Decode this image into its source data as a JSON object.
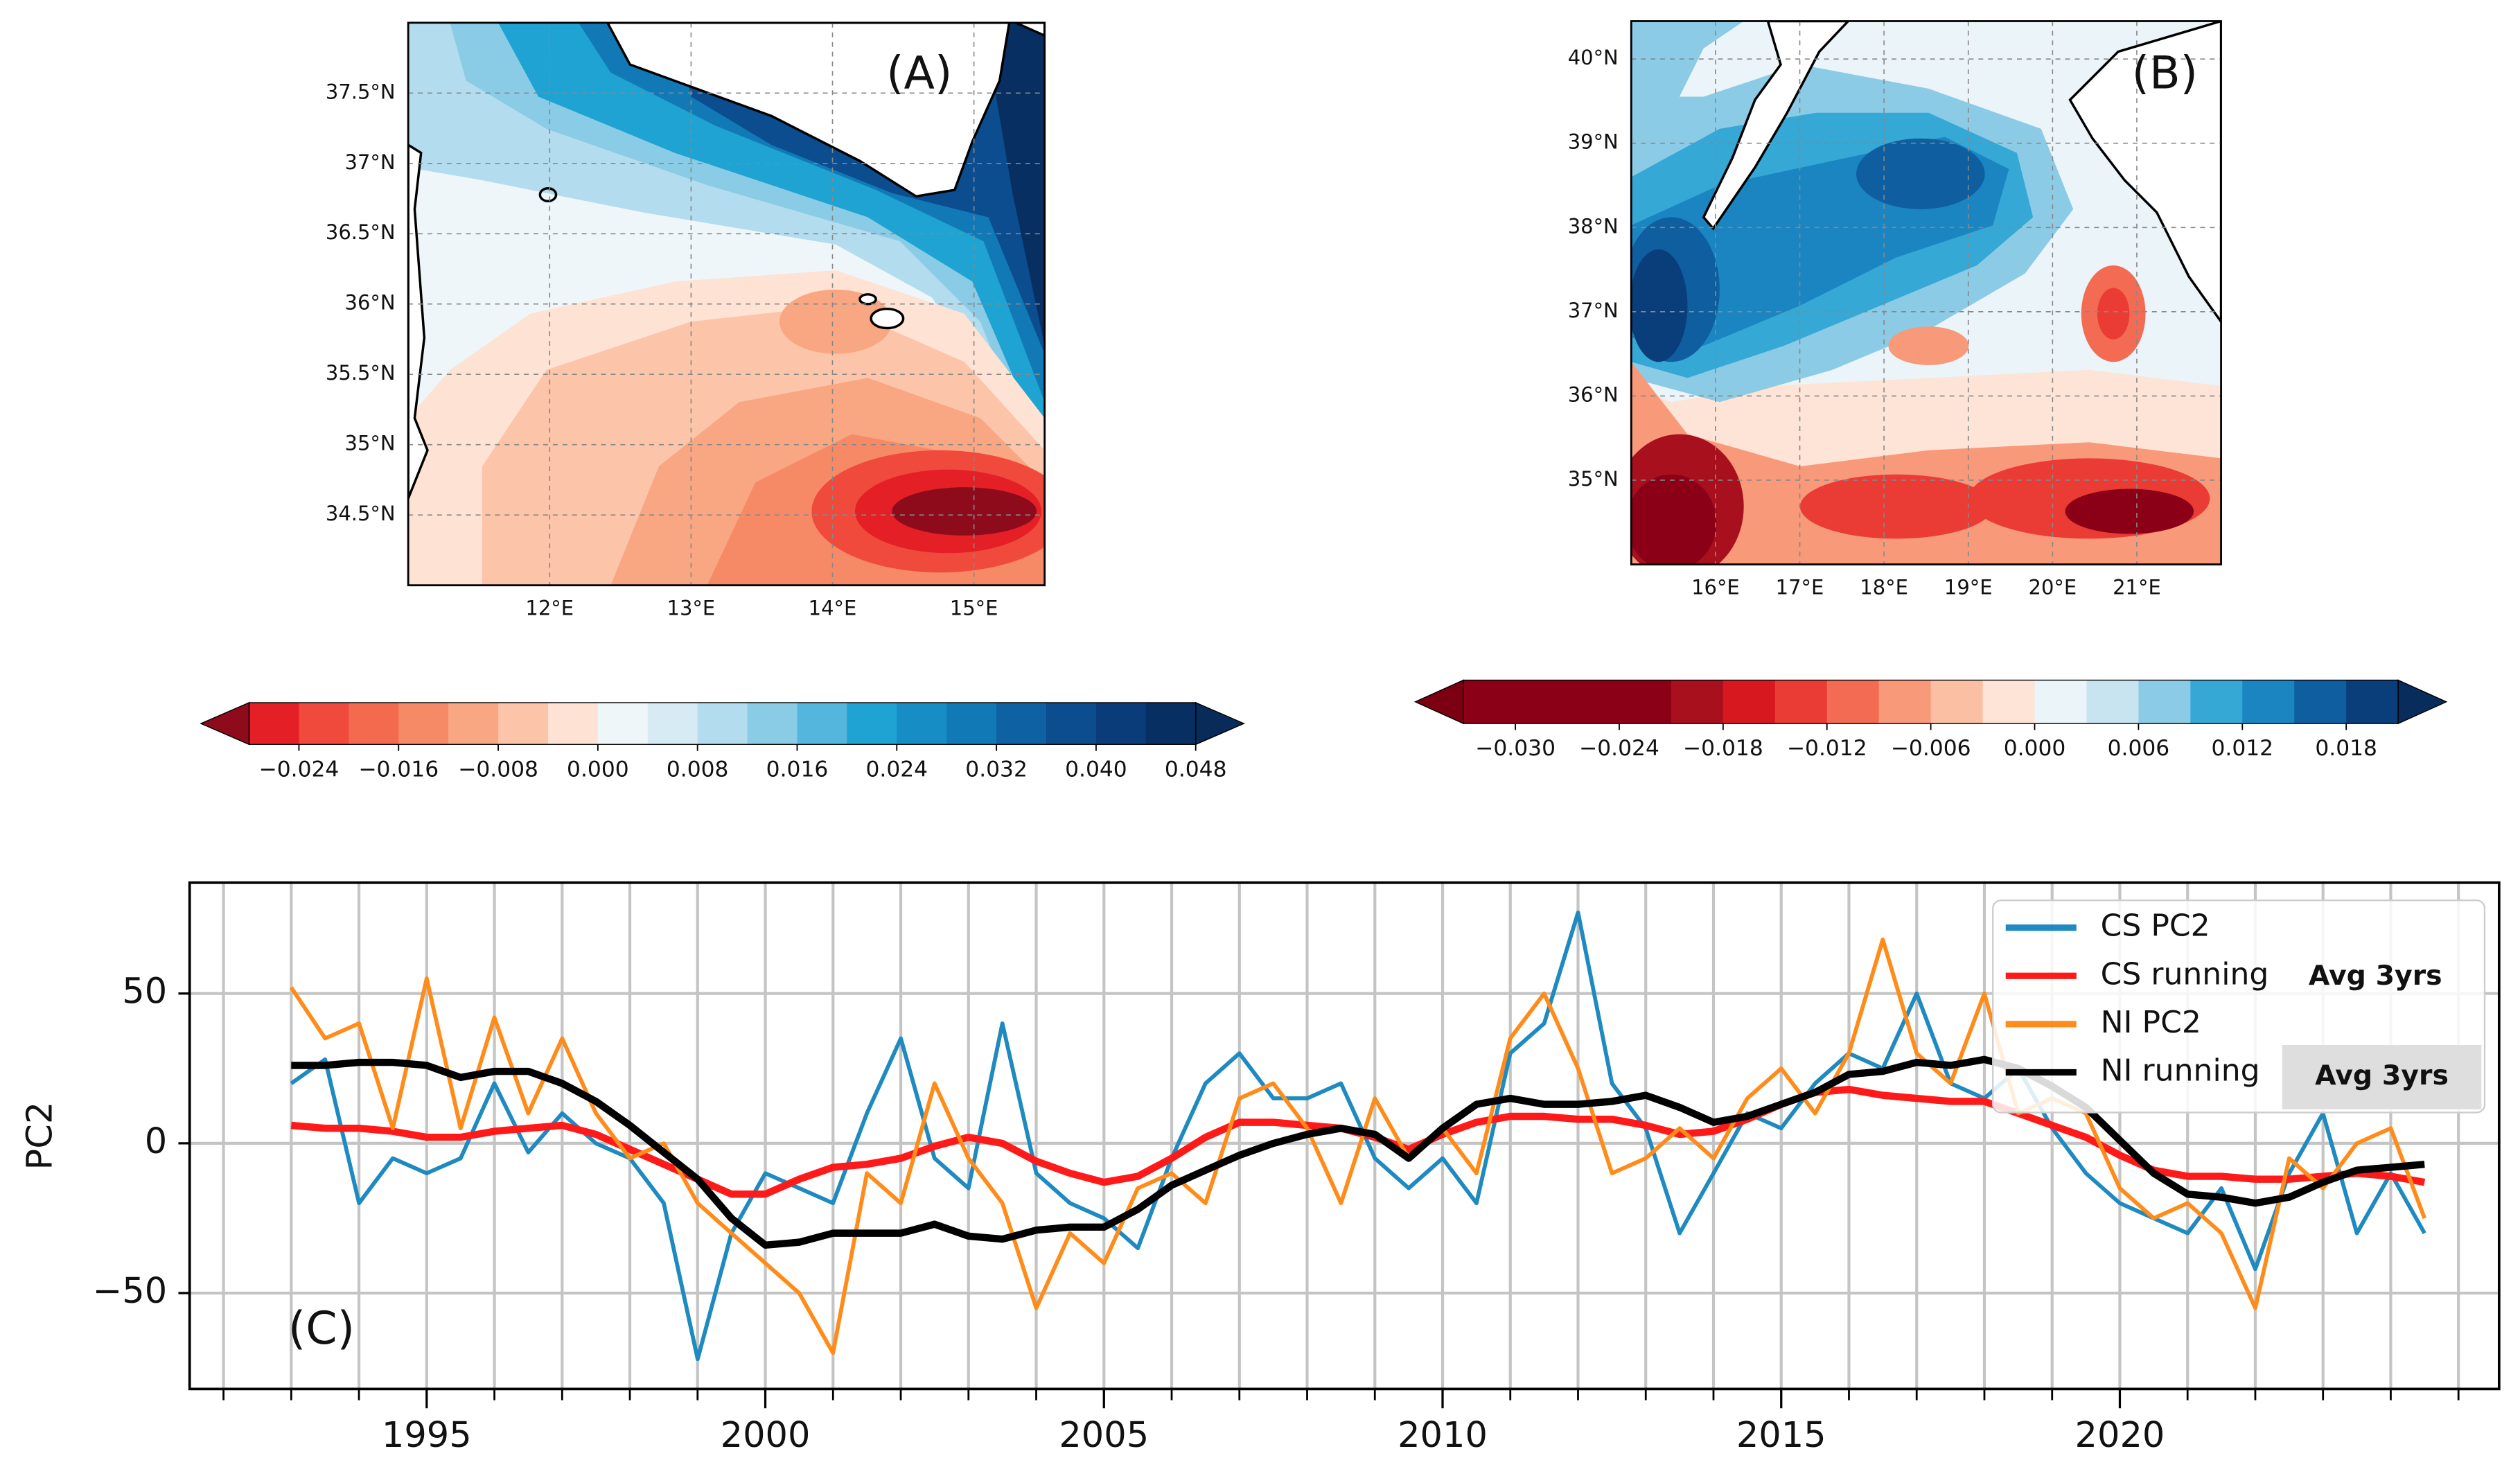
{
  "chart_data": [
    {
      "type": "map",
      "label": "(A)",
      "xlim": [
        11,
        15.5
      ],
      "ylim": [
        34,
        38
      ],
      "xticks": [
        {
          "value": 12,
          "label": "12°E"
        },
        {
          "value": 13,
          "label": "13°E"
        },
        {
          "value": 14,
          "label": "14°E"
        },
        {
          "value": 15,
          "label": "15°E"
        }
      ],
      "yticks": [
        {
          "value": 34.5,
          "label": "34.5°N"
        },
        {
          "value": 35,
          "label": "35°N"
        },
        {
          "value": 35.5,
          "label": "35.5°N"
        },
        {
          "value": 36,
          "label": "36°N"
        },
        {
          "value": 36.5,
          "label": "36.5°N"
        },
        {
          "value": 37,
          "label": "37°N"
        },
        {
          "value": 37.5,
          "label": "37.5°N"
        }
      ],
      "colorbar": {
        "boundaries": [
          -0.028,
          -0.024,
          -0.02,
          -0.016,
          -0.012,
          -0.008,
          -0.004,
          0,
          0.004,
          0.008,
          0.012,
          0.016,
          0.02,
          0.024,
          0.028,
          0.032,
          0.036,
          0.04,
          0.044,
          0.048
        ],
        "colors": [
          "#e41f26",
          "#ef4a3c",
          "#f46a4f",
          "#f78a66",
          "#f9a682",
          "#fcc4a8",
          "#fee2d4",
          "#eef6fa",
          "#d6ebf4",
          "#b3dcee",
          "#8acbe6",
          "#55b6dd",
          "#1ea3d2",
          "#168ec5",
          "#1279b7",
          "#0e62a4",
          "#0b4d8f",
          "#093c78",
          "#082f62"
        ],
        "under": "#8e0b1c",
        "over": "#082b5a",
        "ticks": [
          {
            "value": -0.024,
            "label": "−0.024"
          },
          {
            "value": -0.016,
            "label": "−0.016"
          },
          {
            "value": -0.008,
            "label": "−0.008"
          },
          {
            "value": 0,
            "label": "0.000"
          },
          0.008,
          0.016,
          0.024,
          0.032,
          {
            "value": 0.04,
            "label": "0.040"
          },
          0.048
        ]
      }
    },
    {
      "type": "map",
      "label": "(B)",
      "xlim": [
        15,
        22
      ],
      "ylim": [
        34,
        40.45
      ],
      "xticks": [
        {
          "value": 16,
          "label": "16°E"
        },
        {
          "value": 17,
          "label": "17°E"
        },
        {
          "value": 18,
          "label": "18°E"
        },
        {
          "value": 19,
          "label": "19°E"
        },
        {
          "value": 20,
          "label": "20°E"
        },
        {
          "value": 21,
          "label": "21°E"
        }
      ],
      "yticks": [
        {
          "value": 35,
          "label": "35°N"
        },
        {
          "value": 36,
          "label": "36°N"
        },
        {
          "value": 37,
          "label": "37°N"
        },
        {
          "value": 38,
          "label": "38°N"
        },
        {
          "value": 39,
          "label": "39°N"
        },
        {
          "value": 40,
          "label": "40°N"
        }
      ],
      "colorbar": {
        "boundaries": [
          -0.033,
          -0.03,
          -0.027,
          -0.024,
          -0.021,
          -0.018,
          -0.015,
          -0.012,
          -0.009,
          -0.006,
          -0.003,
          0,
          0.003,
          0.006,
          0.009,
          0.012,
          0.015,
          0.018,
          0.021
        ],
        "colors": [
          "#8b0016",
          "#8b0016",
          "#8b0016",
          "#8b0016",
          "#a8101e",
          "#d7191f",
          "#ea3b35",
          "#f26b52",
          "#f8997a",
          "#fbc0a3",
          "#fde4d6",
          "#eaf4f9",
          "#c8e4f1",
          "#8ccbe6",
          "#35a8d6",
          "#1a85c0",
          "#0f5e9f",
          "#0a3e7a"
        ],
        "under": "#7a0012",
        "over": "#082d5c",
        "ticks": [
          {
            "value": -0.03,
            "label": "−0.030"
          },
          {
            "value": -0.024,
            "label": "−0.024"
          },
          {
            "value": -0.018,
            "label": "−0.018"
          },
          {
            "value": -0.012,
            "label": "−0.012"
          },
          {
            "value": -0.006,
            "label": "−0.006"
          },
          {
            "value": 0,
            "label": "0.000"
          },
          0.006,
          0.012,
          0.018
        ]
      }
    },
    {
      "type": "line",
      "ylabel": "PC2",
      "annotations": [
        "(C)",
        "Avg 3yrs",
        "Avg 3yrs"
      ],
      "xlim": [
        1991.5,
        2025.6
      ],
      "ylim": [
        -82,
        87
      ],
      "xticks": [
        1995,
        2000,
        2005,
        2010,
        2015,
        2020
      ],
      "xminorticks": [
        1992,
        1993,
        1994,
        1995,
        1996,
        1997,
        1998,
        1999,
        2000,
        2001,
        2002,
        2003,
        2004,
        2005,
        2006,
        2007,
        2008,
        2009,
        2010,
        2011,
        2012,
        2013,
        2014,
        2015,
        2016,
        2017,
        2018,
        2019,
        2020,
        2021,
        2022,
        2023,
        2024,
        2025
      ],
      "yticks": [
        {
          "value": -50,
          "label": "−50"
        },
        0,
        50
      ],
      "grid": true,
      "legend": "upper right",
      "x": [
        1993,
        1993.5,
        1994,
        1994.5,
        1995,
        1995.5,
        1996,
        1996.5,
        1997,
        1997.5,
        1998,
        1998.5,
        1999,
        1999.5,
        2000,
        2000.5,
        2001,
        2001.5,
        2002,
        2002.5,
        2003,
        2003.5,
        2004,
        2004.5,
        2005,
        2005.5,
        2006,
        2006.5,
        2007,
        2007.5,
        2008,
        2008.5,
        2009,
        2009.5,
        2010,
        2010.5,
        2011,
        2011.5,
        2012,
        2012.5,
        2013,
        2013.5,
        2014,
        2014.5,
        2015,
        2015.5,
        2016,
        2016.5,
        2017,
        2017.5,
        2018,
        2018.5,
        2019,
        2019.5,
        2020,
        2020.5,
        2021,
        2021.5,
        2022,
        2022.5,
        2023,
        2023.5,
        2024,
        2024.5
      ],
      "series": [
        {
          "name": "CS PC2",
          "color": "#1f8ac0",
          "width": 2.5,
          "values": [
            20,
            28,
            -20,
            -5,
            -10,
            -5,
            20,
            -3,
            10,
            0,
            -5,
            -20,
            -72,
            -30,
            -10,
            -15,
            -20,
            10,
            35,
            -5,
            -15,
            40,
            -10,
            -20,
            -25,
            -35,
            -5,
            20,
            30,
            15,
            15,
            20,
            -5,
            -15,
            -5,
            -20,
            30,
            40,
            77,
            20,
            5,
            -30,
            -10,
            10,
            5,
            20,
            30,
            25,
            50,
            20,
            15,
            25,
            5,
            -10,
            -20,
            -25,
            -30,
            -15,
            -42,
            -10,
            10,
            -30,
            -10,
            -30
          ]
        },
        {
          "name": "CS running",
          "color": "#ff1a1a",
          "width": 4.5,
          "values": [
            6,
            5,
            5,
            4,
            2,
            2,
            4,
            5,
            6,
            3,
            -2,
            -7,
            -12,
            -17,
            -17,
            -12,
            -8,
            -7,
            -5,
            -1,
            2,
            0,
            -6,
            -10,
            -13,
            -11,
            -5,
            2,
            7,
            7,
            6,
            5,
            2,
            -2,
            3,
            7,
            9,
            9,
            8,
            8,
            6,
            3,
            4,
            8,
            13,
            17,
            18,
            16,
            15,
            14,
            14,
            10,
            6,
            2,
            -4,
            -9,
            -11,
            -11,
            -12,
            -12,
            -11,
            -10,
            -11,
            -13
          ]
        },
        {
          "name": "NI PC2",
          "color": "#ff8c1a",
          "width": 2.5,
          "values": [
            52,
            35,
            40,
            5,
            55,
            5,
            42,
            10,
            35,
            10,
            -5,
            0,
            -20,
            -30,
            -40,
            -50,
            -70,
            -10,
            -20,
            20,
            -5,
            -20,
            -55,
            -30,
            -40,
            -15,
            -10,
            -20,
            15,
            20,
            5,
            -20,
            15,
            -5,
            5,
            -10,
            35,
            50,
            25,
            -10,
            -5,
            5,
            -5,
            15,
            25,
            10,
            30,
            68,
            30,
            20,
            50,
            10,
            15,
            10,
            -15,
            -25,
            -20,
            -30,
            -55,
            -5,
            -15,
            0,
            5,
            -25
          ]
        },
        {
          "name": "NI running",
          "color": "#000000",
          "width": 4.5,
          "values": [
            26,
            26,
            27,
            27,
            26,
            22,
            24,
            24,
            20,
            14,
            6,
            -3,
            -12,
            -25,
            -34,
            -33,
            -30,
            -30,
            -30,
            -27,
            -31,
            -32,
            -29,
            -28,
            -28,
            -22,
            -14,
            -9,
            -4,
            0,
            3,
            5,
            3,
            -5,
            5,
            13,
            15,
            13,
            13,
            14,
            16,
            12,
            7,
            9,
            13,
            17,
            23,
            24,
            27,
            26,
            28,
            25,
            19,
            12,
            1,
            -10,
            -17,
            -18,
            -20,
            -18,
            -13,
            -9,
            -8,
            -7
          ]
        }
      ]
    }
  ]
}
